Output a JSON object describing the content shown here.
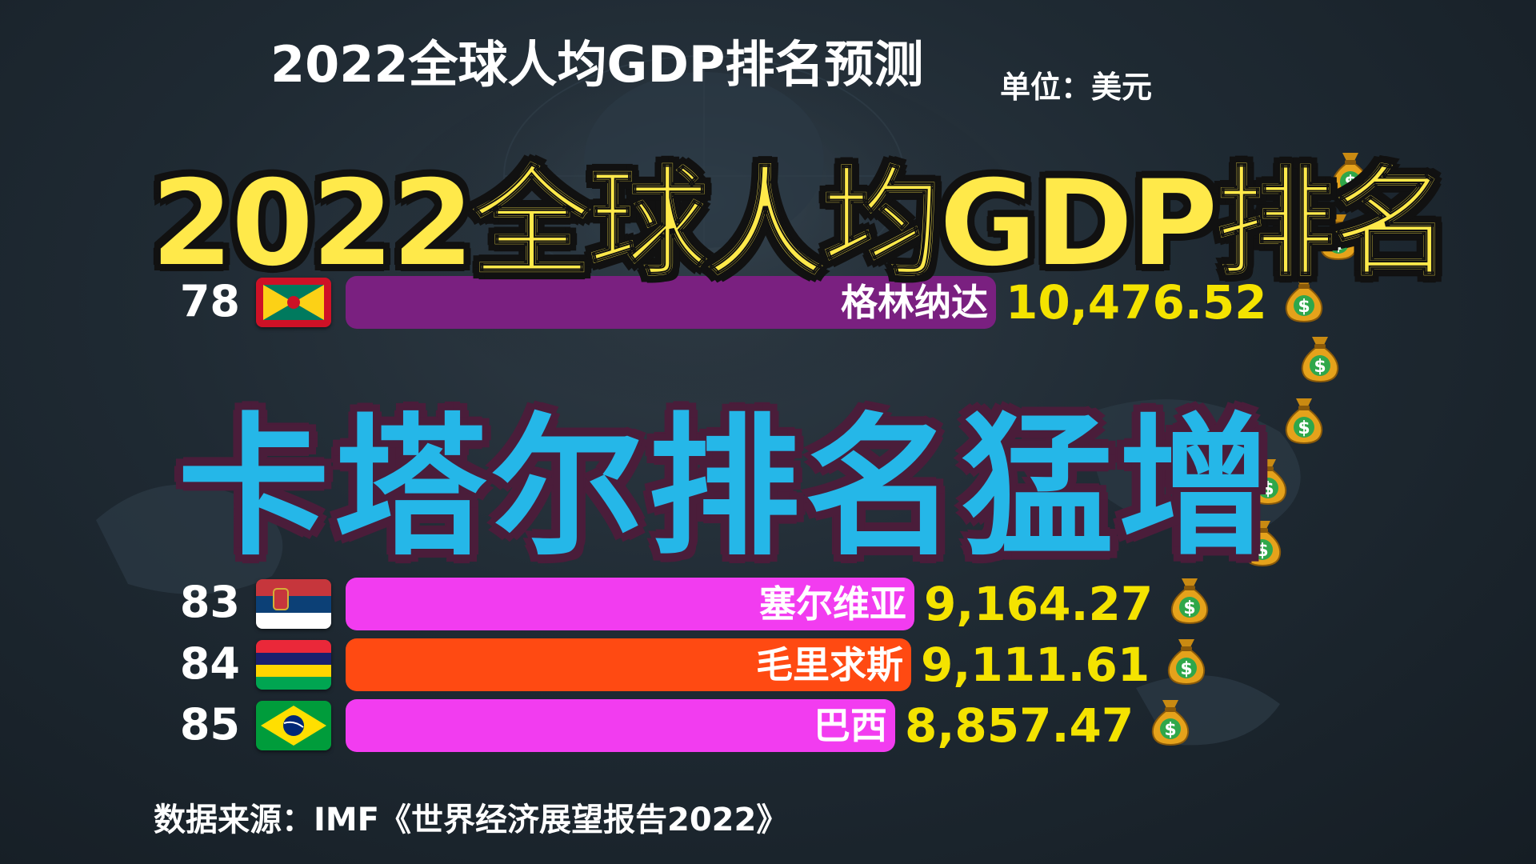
{
  "chart_title": "2022全球人均GDP排名预测",
  "unit": "单位：美元",
  "source": "数据来源：IMF《世界经济展望报告2022》",
  "overlay": {
    "headline": "2022全球人均GDP排名",
    "subheadline": "卡塔尔排名猛增"
  },
  "colors": {
    "value": "#f4e300",
    "headline": "#ffe94a",
    "subheadline": "#25b7e8"
  },
  "icons": {
    "money": "money-bag-icon"
  },
  "chart_data": {
    "type": "bar",
    "orientation": "horizontal",
    "title": "2022全球人均GDP排名预测",
    "unit": "单位：美元",
    "rows": [
      {
        "rank": "78",
        "country": "格林纳达",
        "value": 10476.52,
        "display": "10,476.52",
        "color": "#7a2080",
        "flag": "grenada"
      },
      {
        "rank": "83",
        "country": "塞尔维亚",
        "value": 9164.27,
        "display": "9,164.27",
        "color": "#f23cf0",
        "flag": "serbia"
      },
      {
        "rank": "84",
        "country": "毛里求斯",
        "value": 9111.61,
        "display": "9,111.61",
        "color": "#ff4a12",
        "flag": "mauritius"
      },
      {
        "rank": "85",
        "country": "巴西",
        "value": 8857.47,
        "display": "8,857.47",
        "color": "#f23cf0",
        "flag": "brazil"
      }
    ]
  }
}
